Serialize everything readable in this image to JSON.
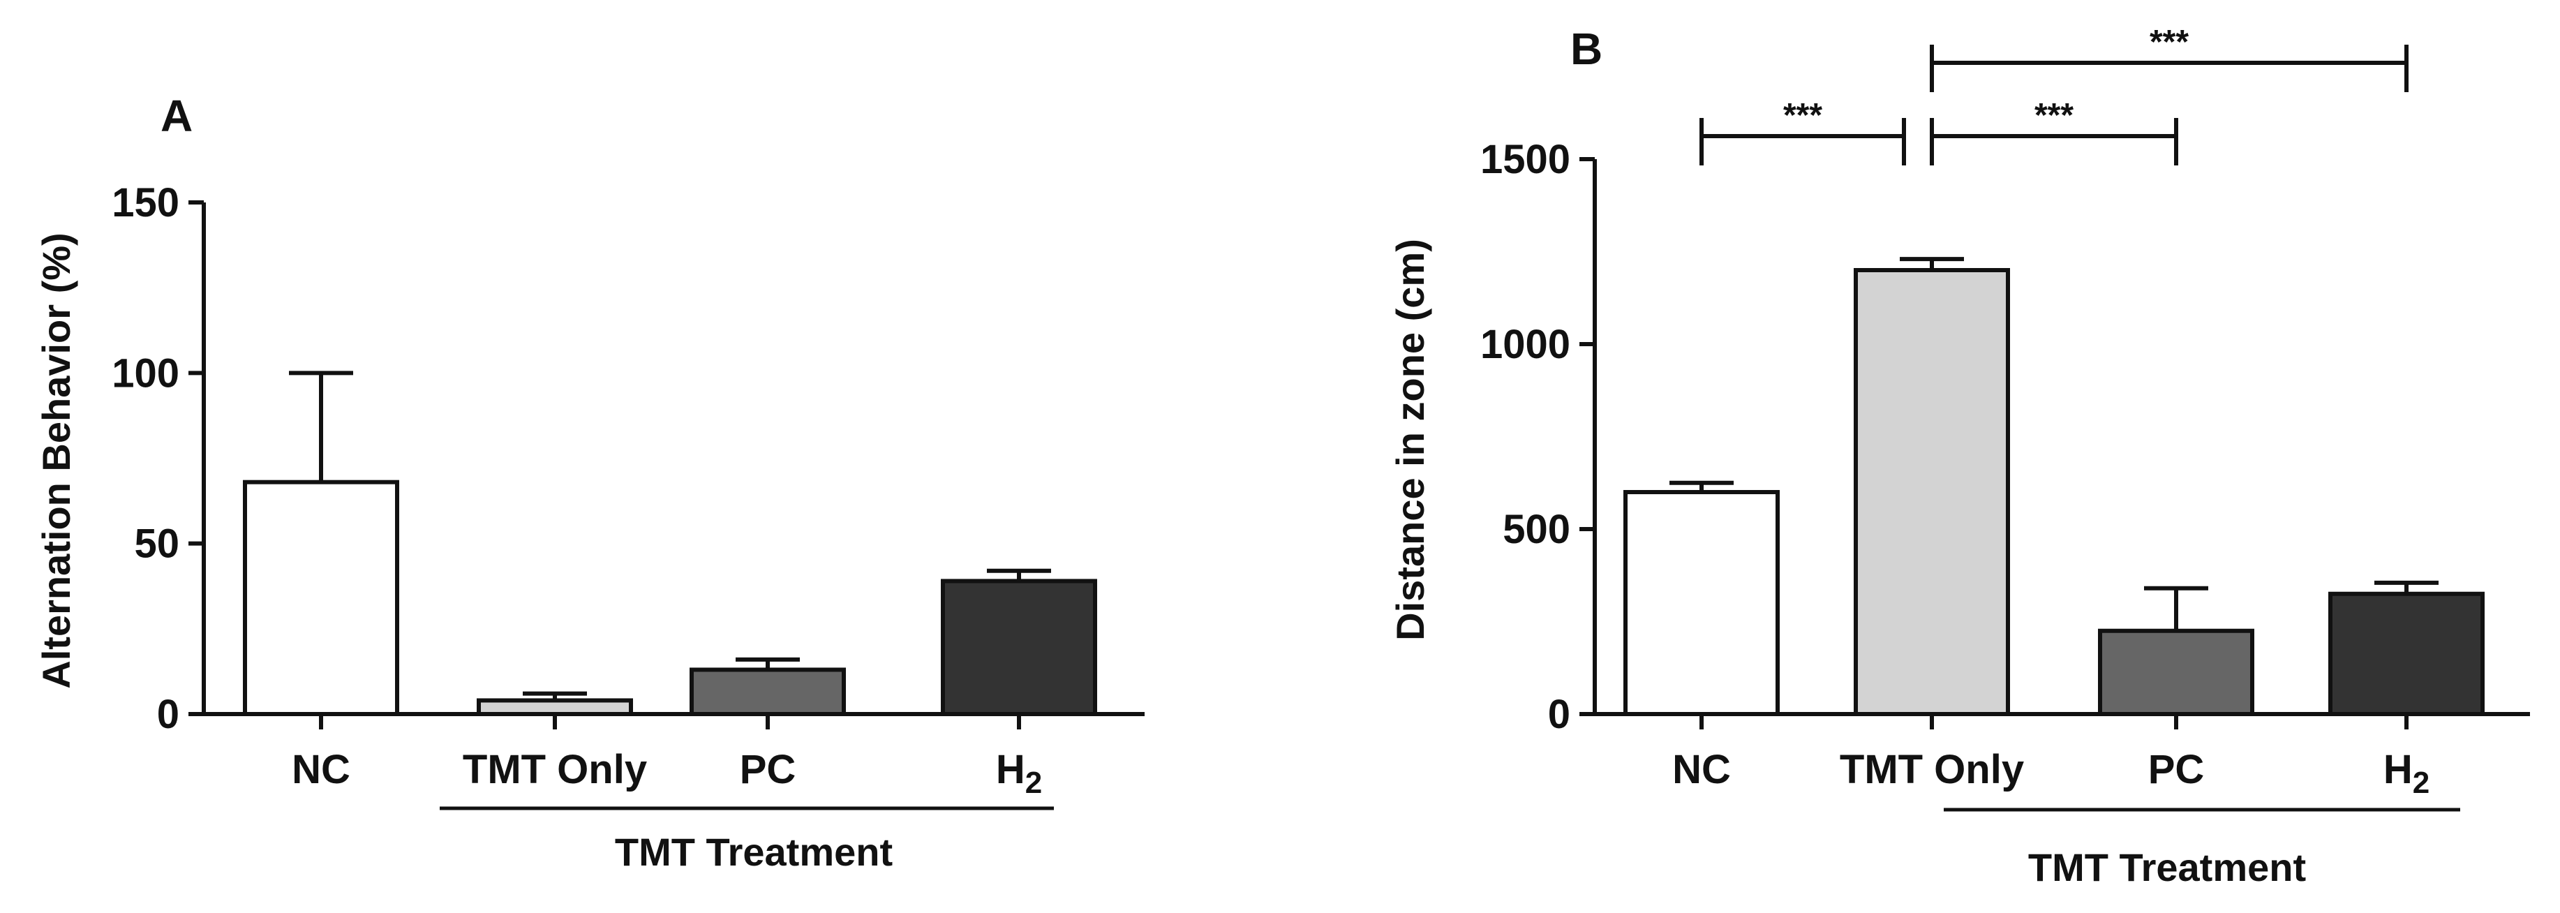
{
  "chart_data": [
    {
      "panel_label": "A",
      "type": "bar",
      "categories": [
        "NC",
        "TMT Only",
        "PC",
        "H"
      ],
      "subscripts": [
        "",
        "",
        "",
        "2"
      ],
      "values": [
        68,
        4,
        13,
        39
      ],
      "errors": [
        32,
        2,
        3,
        3
      ],
      "colors": [
        "#ffffff",
        "#d3d3d3",
        "#666666",
        "#333333"
      ],
      "ylabel": "Alternation Behavior (%)",
      "xlabel": "",
      "ylim": [
        0,
        150
      ],
      "yticks": [
        0,
        50,
        100,
        150
      ],
      "group_label": "TMT Treatment",
      "group_span": [
        "TMT Only",
        "H"
      ]
    },
    {
      "panel_label": "B",
      "type": "bar",
      "categories": [
        "NC",
        "TMT Only",
        "PC",
        "H"
      ],
      "subscripts": [
        "",
        "",
        "",
        "2"
      ],
      "values": [
        600,
        1200,
        225,
        325
      ],
      "errors": [
        25,
        30,
        115,
        30
      ],
      "colors": [
        "#ffffff",
        "#d3d3d3",
        "#666666",
        "#333333"
      ],
      "ylabel": "Distance in zone (cm)",
      "xlabel": "",
      "ylim": [
        0,
        1500
      ],
      "yticks": [
        0,
        500,
        1000,
        1500
      ],
      "group_label": "TMT Treatment",
      "group_span": [
        "PC",
        "H"
      ],
      "significance": [
        {
          "from": "NC",
          "to": "TMT Only",
          "label": "***"
        },
        {
          "from": "TMT Only",
          "to": "PC",
          "label": "***"
        },
        {
          "from": "TMT Only",
          "to": "H",
          "label": "***"
        }
      ]
    }
  ]
}
